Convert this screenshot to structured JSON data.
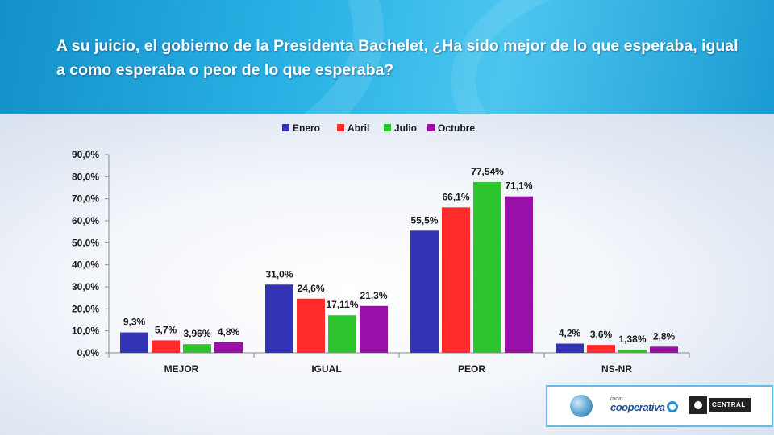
{
  "title": "A su juicio, el gobierno de la Presidenta Bachelet, ¿Ha sido mejor de lo que esperaba, igual a como esperaba o peor de lo que esperaba?",
  "logos": {
    "cooperativa_tagline": "radio",
    "cooperativa_name": "cooperativa",
    "university_name": "CENTRAL"
  },
  "colors": {
    "header": "#1ea6dc",
    "axis": "#8a8a8a"
  },
  "chart_data": {
    "type": "bar",
    "title": "",
    "xlabel": "",
    "ylabel": "",
    "ylim": [
      0,
      90
    ],
    "ytick_step": 10,
    "ytick_labels": [
      "0,0%",
      "10,0%",
      "20,0%",
      "30,0%",
      "40,0%",
      "50,0%",
      "60,0%",
      "70,0%",
      "80,0%",
      "90,0%"
    ],
    "legend_position": "top",
    "grid": false,
    "categories": [
      "MEJOR",
      "IGUAL",
      "PEOR",
      "NS-NR"
    ],
    "series": [
      {
        "name": "Enero",
        "color": "#3333b8",
        "values": [
          9.3,
          31.0,
          55.5,
          4.2
        ],
        "labels": [
          "9,3%",
          "31,0%",
          "55,5%",
          "4,2%"
        ]
      },
      {
        "name": "Abril",
        "color": "#ff2a2a",
        "values": [
          5.7,
          24.6,
          66.1,
          3.6
        ],
        "labels": [
          "5,7%",
          "24,6%",
          "66,1%",
          "3,6%"
        ]
      },
      {
        "name": "Julio",
        "color": "#2ec42e",
        "values": [
          3.96,
          17.11,
          77.54,
          1.38
        ],
        "labels": [
          "3,96%",
          "17,11%",
          "77,54%",
          "1,38%"
        ]
      },
      {
        "name": "Octubre",
        "color": "#9a0fa8",
        "values": [
          4.8,
          21.3,
          71.1,
          2.8
        ],
        "labels": [
          "4,8%",
          "21,3%",
          "71,1%",
          "2,8%"
        ]
      }
    ]
  }
}
